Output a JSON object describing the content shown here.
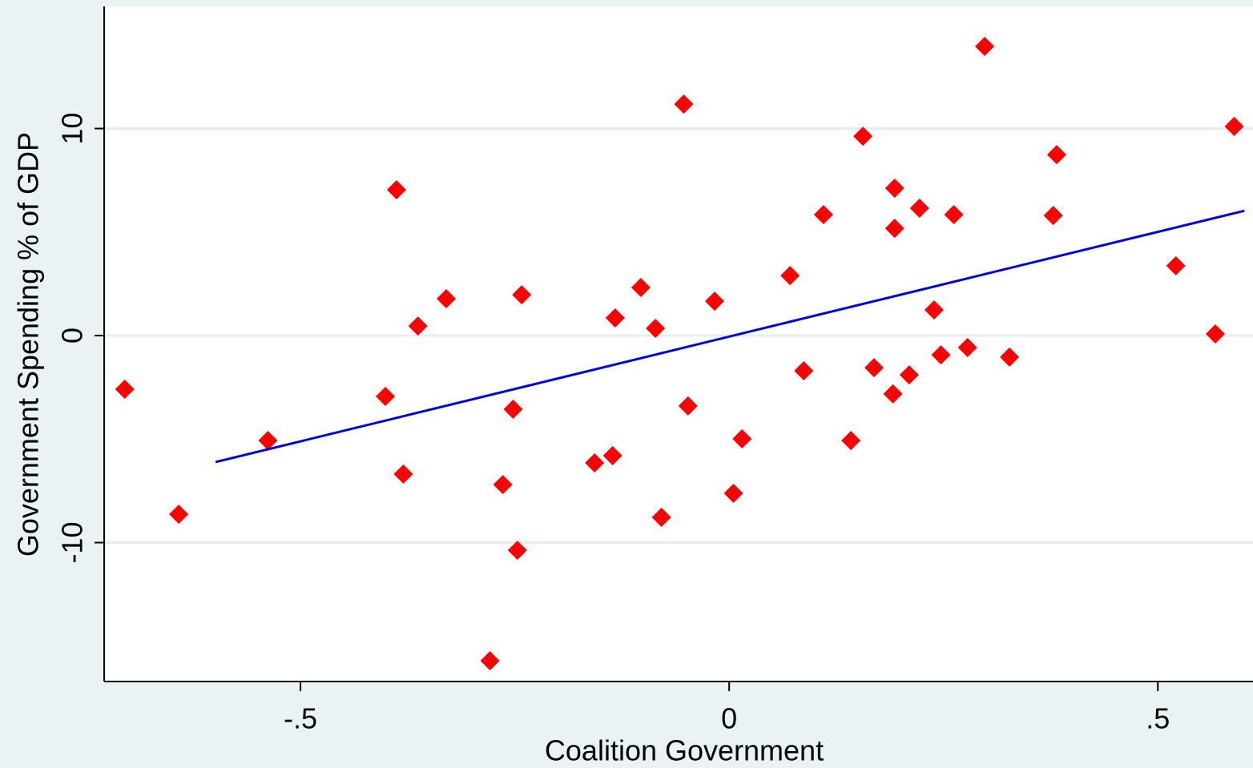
{
  "chart_data": {
    "type": "scatter",
    "x_label": "Coalition Government",
    "y_label": "Government Spending % of GDP",
    "xlim": [
      -0.729,
      0.611
    ],
    "ylim": [
      -16.71,
      15.9
    ],
    "xticks": [
      {
        "value": -0.5,
        "label": "-.5"
      },
      0,
      {
        "value": 0.5,
        "label": ".5"
      }
    ],
    "yticks": [
      -10,
      0,
      10
    ],
    "grid": true,
    "series": [
      {
        "type": "scatter",
        "color": "#ff0000",
        "x": [
          -0.705,
          -0.642,
          -0.538,
          -0.401,
          -0.388,
          -0.38,
          -0.363,
          -0.33,
          -0.279,
          -0.264,
          -0.252,
          -0.247,
          -0.242,
          -0.157,
          -0.136,
          -0.133,
          -0.103,
          -0.086,
          -0.079,
          -0.053,
          -0.048,
          -0.017,
          0.005,
          0.015,
          0.071,
          0.087,
          0.11,
          0.142,
          0.156,
          0.169,
          0.191,
          0.193,
          0.193,
          0.21,
          0.222,
          0.239,
          0.247,
          0.262,
          0.278,
          0.298,
          0.327,
          0.378,
          0.382,
          0.521,
          0.567,
          0.589
        ],
        "values": [
          -2.59,
          -8.63,
          -5.07,
          -2.94,
          7.04,
          -6.69,
          0.46,
          1.78,
          -15.71,
          -7.2,
          -3.56,
          -10.37,
          1.97,
          -6.15,
          -5.8,
          0.85,
          2.32,
          0.35,
          -8.78,
          11.18,
          -3.4,
          1.66,
          -7.62,
          -4.99,
          2.9,
          -1.7,
          5.84,
          -5.07,
          9.63,
          -1.55,
          -2.82,
          5.18,
          7.12,
          -1.9,
          6.15,
          1.24,
          -0.93,
          5.84,
          -0.58,
          13.97,
          -1.04,
          5.8,
          8.74,
          3.37,
          0.08,
          10.1
        ]
      },
      {
        "type": "line",
        "color": "#0000dd",
        "x": [
          -0.599,
          0.601
        ],
        "values": [
          -6.11,
          6.03
        ]
      }
    ]
  }
}
